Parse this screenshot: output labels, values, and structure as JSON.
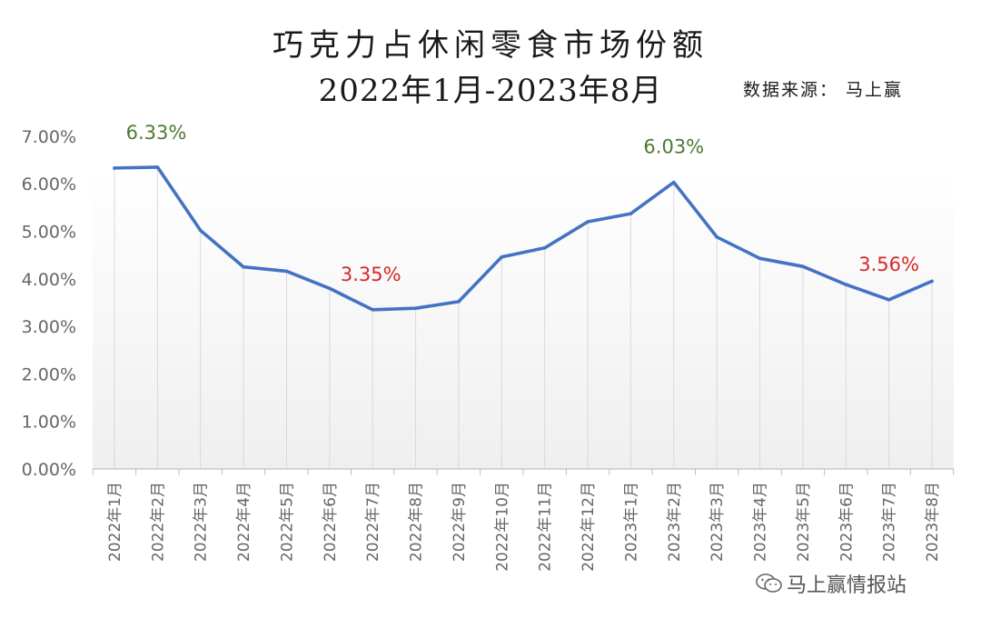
{
  "header": {
    "title_line1": "巧克力占休闲零食市场份额",
    "title_line2": "2022年1月-2023年8月",
    "source": "数据来源：  马上赢"
  },
  "watermark": {
    "text": "马上赢情报站",
    "icon": "wechat-icon"
  },
  "colors": {
    "line": "#4472C4",
    "high_label": "#4E7A2E",
    "low_label": "#D62828",
    "axis_text": "#666666",
    "gridline": "#D9D9D9"
  },
  "chart_data": {
    "type": "line",
    "title": "巧克力占休闲零食市场份额 2022年1月-2023年8月",
    "categories": [
      "2022年1月",
      "2022年2月",
      "2022年3月",
      "2022年4月",
      "2022年5月",
      "2022年6月",
      "2022年7月",
      "2022年8月",
      "2022年9月",
      "2022年10月",
      "2022年11月",
      "2022年12月",
      "2023年1月",
      "2023年2月",
      "2023年3月",
      "2023年4月",
      "2023年5月",
      "2023年6月",
      "2023年7月",
      "2023年8月"
    ],
    "series": [
      {
        "values": [
          6.33,
          6.35,
          5.02,
          4.25,
          4.16,
          3.8,
          3.35,
          3.38,
          3.52,
          4.46,
          4.65,
          5.2,
          5.37,
          6.03,
          4.88,
          4.43,
          4.26,
          3.88,
          3.56,
          3.95
        ]
      }
    ],
    "y_ticks": [
      "0.00%",
      "1.00%",
      "2.00%",
      "3.00%",
      "4.00%",
      "5.00%",
      "6.00%",
      "7.00%"
    ],
    "ylim": [
      0,
      7
    ],
    "grid": "vertical",
    "annotations": [
      {
        "index": 0,
        "text": "6.33%",
        "kind": "high"
      },
      {
        "index": 6,
        "text": "3.35%",
        "kind": "low"
      },
      {
        "index": 13,
        "text": "6.03%",
        "kind": "high"
      },
      {
        "index": 18,
        "text": "3.56%",
        "kind": "low"
      }
    ]
  }
}
